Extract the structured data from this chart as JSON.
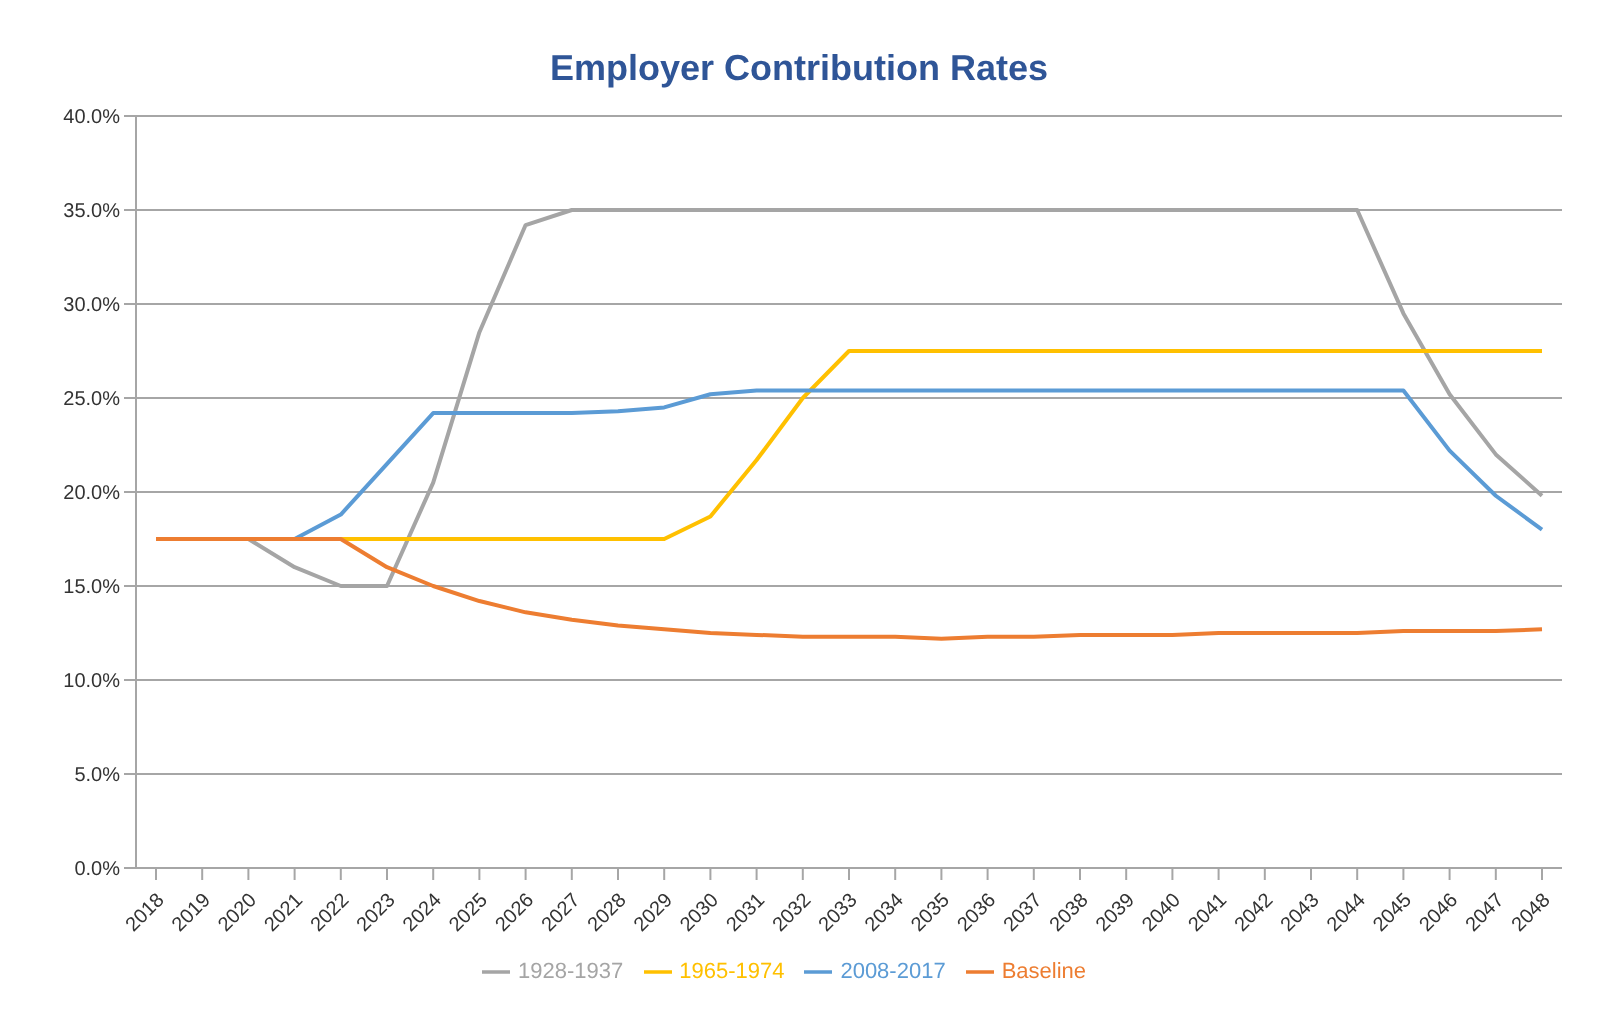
{
  "chart_data": {
    "type": "line",
    "title": "Employer Contribution Rates",
    "categories": [
      "2018",
      "2019",
      "2020",
      "2021",
      "2022",
      "2023",
      "2024",
      "2025",
      "2026",
      "2027",
      "2028",
      "2029",
      "2030",
      "2031",
      "2032",
      "2033",
      "2034",
      "2035",
      "2036",
      "2037",
      "2038",
      "2039",
      "2040",
      "2041",
      "2042",
      "2043",
      "2044",
      "2045",
      "2046",
      "2047",
      "2048"
    ],
    "series": [
      {
        "name": "1928-1937",
        "color": "#a5a5a5",
        "values": [
          null,
          null,
          17.5,
          16.0,
          15.0,
          15.0,
          20.5,
          28.5,
          34.2,
          35.0,
          35.0,
          35.0,
          35.0,
          35.0,
          35.0,
          35.0,
          35.0,
          35.0,
          35.0,
          35.0,
          35.0,
          35.0,
          35.0,
          35.0,
          35.0,
          35.0,
          35.0,
          29.5,
          25.2,
          22.0,
          19.8
        ]
      },
      {
        "name": "1965-1974",
        "color": "#ffc000",
        "values": [
          null,
          null,
          null,
          17.5,
          17.5,
          17.5,
          17.5,
          17.5,
          17.5,
          17.5,
          17.5,
          17.5,
          18.7,
          21.7,
          25.0,
          27.5,
          27.5,
          27.5,
          27.5,
          27.5,
          27.5,
          27.5,
          27.5,
          27.5,
          27.5,
          27.5,
          27.5,
          27.5,
          27.5,
          27.5,
          27.5
        ]
      },
      {
        "name": "2008-2017",
        "color": "#5b9bd5",
        "values": [
          null,
          null,
          17.5,
          17.5,
          18.8,
          21.5,
          24.2,
          24.2,
          24.2,
          24.2,
          24.3,
          24.5,
          25.2,
          25.4,
          25.4,
          25.4,
          25.4,
          25.4,
          25.4,
          25.4,
          25.4,
          25.4,
          25.4,
          25.4,
          25.4,
          25.4,
          25.4,
          25.4,
          22.2,
          19.8,
          18.0
        ]
      },
      {
        "name": "Baseline",
        "color": "#ed7d31",
        "values": [
          17.5,
          17.5,
          17.5,
          17.5,
          17.5,
          16.0,
          15.0,
          14.2,
          13.6,
          13.2,
          12.9,
          12.7,
          12.5,
          12.4,
          12.3,
          12.3,
          12.3,
          12.2,
          12.3,
          12.3,
          12.4,
          12.4,
          12.4,
          12.5,
          12.5,
          12.5,
          12.5,
          12.6,
          12.6,
          12.6,
          12.7
        ]
      }
    ],
    "ylim": [
      0,
      40
    ],
    "yticks": [
      {
        "value": 0,
        "label": "0.0%"
      },
      {
        "value": 5,
        "label": "5.0%"
      },
      {
        "value": 10,
        "label": "10.0%"
      },
      {
        "value": 15,
        "label": "15.0%"
      },
      {
        "value": 20,
        "label": "20.0%"
      },
      {
        "value": 25,
        "label": "25.0%"
      },
      {
        "value": 30,
        "label": "30.0%"
      },
      {
        "value": 35,
        "label": "35.0%"
      },
      {
        "value": 40,
        "label": "40.0%"
      }
    ],
    "grid": "y",
    "legend": "bottom",
    "marker": "none",
    "line_style": "solid"
  }
}
